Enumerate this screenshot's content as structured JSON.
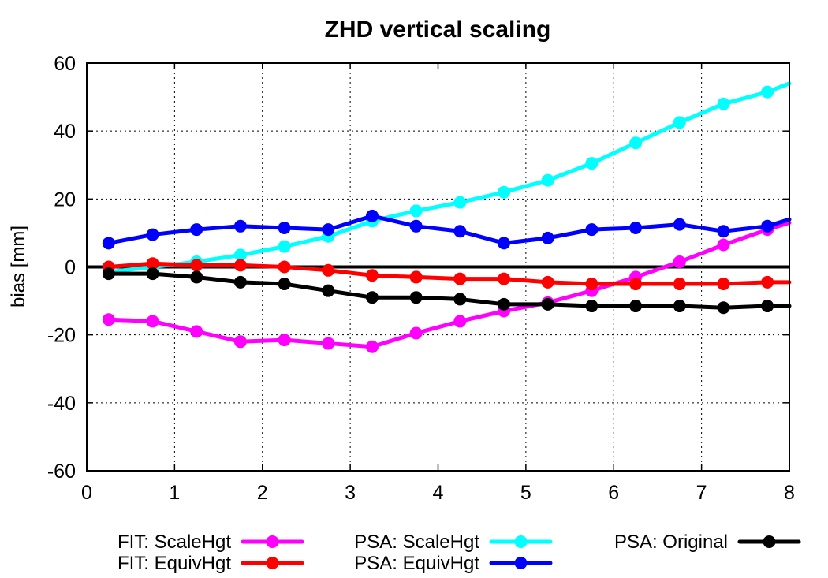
{
  "chart_data": {
    "type": "line",
    "title": "ZHD vertical scaling",
    "xlabel": "",
    "ylabel": "bias [mm]",
    "xlim": [
      0,
      8
    ],
    "ylim": [
      -60,
      60
    ],
    "xticks": [
      0,
      1,
      2,
      3,
      4,
      5,
      6,
      7,
      8
    ],
    "yticks": [
      60,
      40,
      20,
      0,
      -20,
      -40,
      -60
    ],
    "grid": true,
    "legend_position": "bottom",
    "series": [
      {
        "name": "FIT: ScaleHgt",
        "color": "#ff00ff",
        "x": [
          0.25,
          0.75,
          1.25,
          1.75,
          2.25,
          2.75,
          3.25,
          3.75,
          4.25,
          4.75,
          5.25,
          5.75,
          6.25,
          6.75,
          7.25,
          7.75,
          8.0
        ],
        "y": [
          -15.5,
          -16,
          -19,
          -22,
          -21.5,
          -22.5,
          -23.5,
          -19.5,
          -16,
          -13,
          -10.5,
          -7,
          -3,
          1.5,
          6.5,
          11,
          13
        ]
      },
      {
        "name": "FIT: EquivHgt",
        "color": "#ff0000",
        "x": [
          0.25,
          0.75,
          1.25,
          1.75,
          2.25,
          2.75,
          3.25,
          3.75,
          4.25,
          4.75,
          5.25,
          5.75,
          6.25,
          6.75,
          7.25,
          7.75,
          8.0
        ],
        "y": [
          0,
          1,
          0.5,
          0.5,
          0,
          -1,
          -2.5,
          -3,
          -3.5,
          -3.5,
          -4.5,
          -5,
          -5,
          -5,
          -5,
          -4.5,
          -4.5
        ]
      },
      {
        "name": "PSA: ScaleHgt",
        "color": "#00ffff",
        "x": [
          0.25,
          0.75,
          1.25,
          1.75,
          2.25,
          2.75,
          3.25,
          3.75,
          4.25,
          4.75,
          5.25,
          5.75,
          6.25,
          6.75,
          7.25,
          7.75,
          8.0
        ],
        "y": [
          -1.5,
          0,
          1.5,
          3.5,
          6,
          9,
          13.5,
          16.5,
          19,
          22,
          25.5,
          30.5,
          36.5,
          42.5,
          48,
          51.5,
          54
        ]
      },
      {
        "name": "PSA: EquivHgt",
        "color": "#0000ff",
        "x": [
          0.25,
          0.75,
          1.25,
          1.75,
          2.25,
          2.75,
          3.25,
          3.75,
          4.25,
          4.75,
          5.25,
          5.75,
          6.25,
          6.75,
          7.25,
          7.75,
          8.0
        ],
        "y": [
          7,
          9.5,
          11,
          12,
          11.5,
          11,
          15,
          12,
          10.5,
          7,
          8.5,
          11,
          11.5,
          12.5,
          10.5,
          12,
          14
        ]
      },
      {
        "name": "PSA: Original",
        "color": "#000000",
        "x": [
          0.25,
          0.75,
          1.25,
          1.75,
          2.25,
          2.75,
          3.25,
          3.75,
          4.25,
          4.75,
          5.25,
          5.75,
          6.25,
          6.75,
          7.25,
          7.75,
          8.0
        ],
        "y": [
          -2,
          -2,
          -3,
          -4.5,
          -5,
          -7,
          -9,
          -9,
          -9.5,
          -11,
          -11,
          -11.5,
          -11.5,
          -11.5,
          -12,
          -11.5,
          -11.5
        ]
      }
    ],
    "reference_line": {
      "y": 0,
      "color": "#000000"
    }
  }
}
